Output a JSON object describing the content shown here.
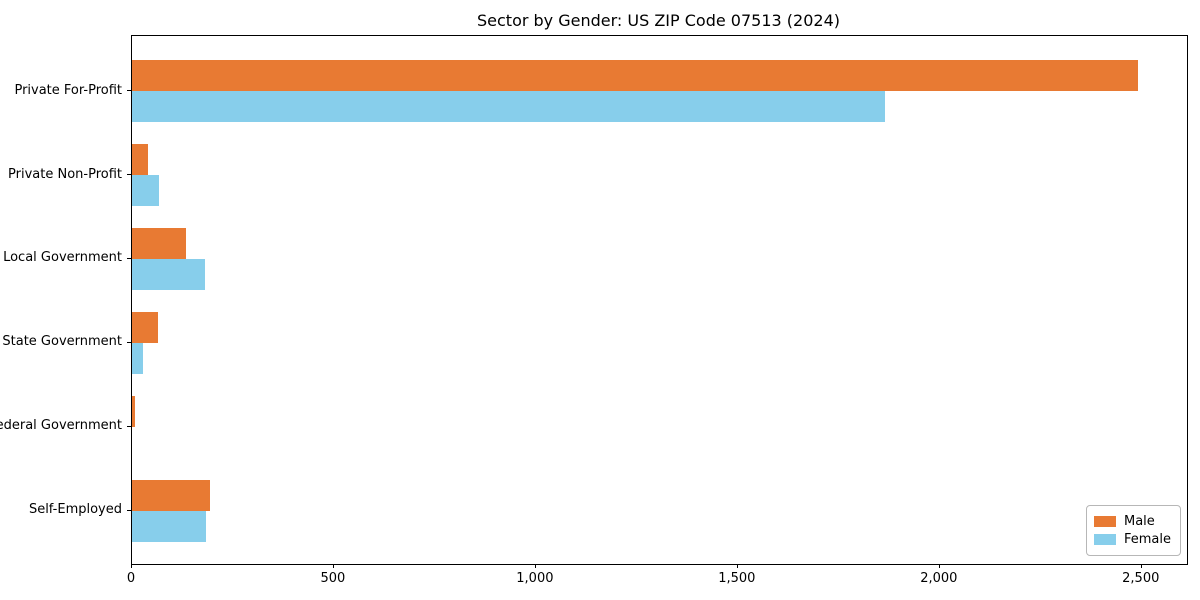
{
  "title": "Sector by Gender: US ZIP Code 07513 (2024)",
  "chart_data": {
    "type": "bar",
    "orientation": "horizontal",
    "title": "Sector by Gender: US ZIP Code 07513 (2024)",
    "categories": [
      "Private For-Profit",
      "Private Non-Profit",
      "Local Government",
      "State Government",
      "Federal Government",
      "Self-Employed"
    ],
    "series": [
      {
        "name": "Male",
        "color": "#e87a33",
        "values": [
          2490,
          40,
          134,
          65,
          8,
          193
        ]
      },
      {
        "name": "Female",
        "color": "#87ceeb",
        "values": [
          1865,
          67,
          181,
          28,
          0,
          183
        ]
      }
    ],
    "xlabel": "",
    "ylabel": "",
    "x_ticks": [
      0,
      500,
      1000,
      1500,
      2000,
      2500
    ],
    "x_tick_labels": [
      "0",
      "500",
      "1,000",
      "1,500",
      "2,000",
      "2,500"
    ],
    "xlim": [
      0,
      2612
    ],
    "grid": false,
    "legend_position": "lower right",
    "legend_entries": [
      "Male",
      "Female"
    ]
  }
}
